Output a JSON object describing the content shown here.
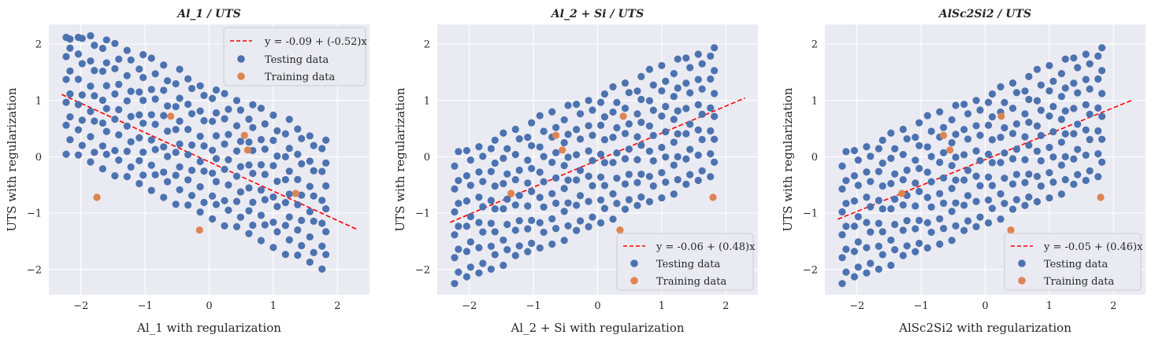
{
  "chart_data": [
    {
      "type": "scatter",
      "title": "Al_1 / UTS",
      "xlabel": "Al_1 with regularization",
      "ylabel": "UTS with regularization",
      "xlim": [
        -2.5,
        2.5
      ],
      "ylim": [
        -2.45,
        2.35
      ],
      "xticks": [
        -2,
        -1,
        0,
        1,
        2
      ],
      "yticks": [
        -2,
        -1,
        0,
        1,
        2
      ],
      "grid": true,
      "legend_position": "top-right",
      "slope": -0.52,
      "cloud_shape": "negative",
      "fit": {
        "label": "y = -0.09 + (-0.52)x",
        "intercept": -0.09,
        "slope": -0.52,
        "x": [
          -2.3,
          2.3
        ]
      },
      "testing_label": "Testing data",
      "training_label": "Training data",
      "training": {
        "x": [
          -1.75,
          -0.6,
          0.55,
          0.6,
          1.35,
          -0.15
        ],
        "y": [
          -0.72,
          0.72,
          0.38,
          0.12,
          -0.65,
          -1.3
        ]
      },
      "colors": {
        "testing": "#4c72b0",
        "training": "#dd8452",
        "fit": "#ff0000"
      }
    },
    {
      "type": "scatter",
      "title": "Al_2 + Si / UTS",
      "xlabel": "Al_2 + Si with regularization",
      "ylabel": "UTS with regularization",
      "xlim": [
        -2.5,
        2.5
      ],
      "ylim": [
        -2.45,
        2.35
      ],
      "xticks": [
        -2,
        -1,
        0,
        1,
        2
      ],
      "yticks": [
        -2,
        -1,
        0,
        1,
        2
      ],
      "grid": true,
      "legend_position": "bottom-right",
      "slope": 0.48,
      "cloud_shape": "positive",
      "fit": {
        "label": "y = -0.06 + (0.48)x",
        "intercept": -0.06,
        "slope": 0.48,
        "x": [
          -2.3,
          2.3
        ]
      },
      "testing_label": "Testing data",
      "training_label": "Training data",
      "training": {
        "x": [
          -1.35,
          -0.65,
          -0.55,
          0.4,
          0.35,
          1.8
        ],
        "y": [
          -0.65,
          0.38,
          0.12,
          0.72,
          -1.3,
          -0.72
        ]
      },
      "colors": {
        "testing": "#4c72b0",
        "training": "#dd8452",
        "fit": "#ff0000"
      }
    },
    {
      "type": "scatter",
      "title": "AlSc2Si2 / UTS",
      "xlabel": "AlSc2Si2 with regularization",
      "ylabel": "UTS with regularization",
      "xlim": [
        -2.5,
        2.5
      ],
      "ylim": [
        -2.45,
        2.35
      ],
      "xticks": [
        -2,
        -1,
        0,
        1,
        2
      ],
      "yticks": [
        -2,
        -1,
        0,
        1,
        2
      ],
      "grid": true,
      "legend_position": "bottom-right",
      "slope": 0.46,
      "cloud_shape": "positive",
      "fit": {
        "label": "y = -0.05 + (0.46)x",
        "intercept": -0.05,
        "slope": 0.46,
        "x": [
          -2.3,
          2.3
        ]
      },
      "testing_label": "Testing data",
      "training_label": "Training data",
      "training": {
        "x": [
          -1.3,
          -0.65,
          -0.55,
          0.25,
          0.4,
          1.8
        ],
        "y": [
          -0.65,
          0.38,
          0.12,
          0.72,
          -1.3,
          -0.72
        ]
      },
      "colors": {
        "testing": "#4c72b0",
        "training": "#dd8452",
        "fit": "#ff0000"
      }
    }
  ]
}
